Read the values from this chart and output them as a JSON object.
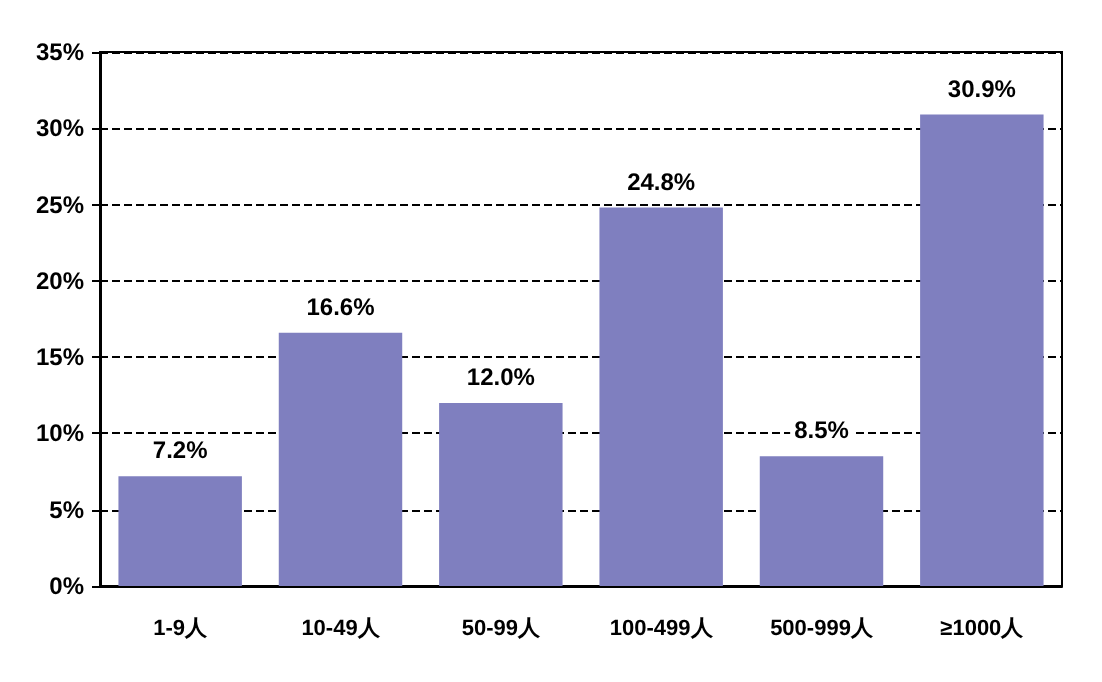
{
  "chart_data": {
    "type": "bar",
    "categories": [
      "1-9人",
      "10-49人",
      "50-99人",
      "100-499人",
      "500-999人",
      "≥1000人"
    ],
    "values": [
      7.2,
      16.6,
      12.0,
      24.8,
      8.5,
      30.9
    ],
    "value_labels": [
      "7.2%",
      "16.6%",
      "12.0%",
      "24.8%",
      "8.5%",
      "30.9%"
    ],
    "color": "#7f7fbf",
    "ylim": [
      0,
      35
    ],
    "yticks": [
      {
        "value": 0,
        "label": "0%"
      },
      {
        "value": 5,
        "label": "5%"
      },
      {
        "value": 10,
        "label": "10%"
      },
      {
        "value": 15,
        "label": "15%"
      },
      {
        "value": 20,
        "label": "20%"
      },
      {
        "value": 25,
        "label": "25%"
      },
      {
        "value": 30,
        "label": "30%"
      },
      {
        "value": 35,
        "label": "35%"
      }
    ],
    "grid": "y"
  }
}
